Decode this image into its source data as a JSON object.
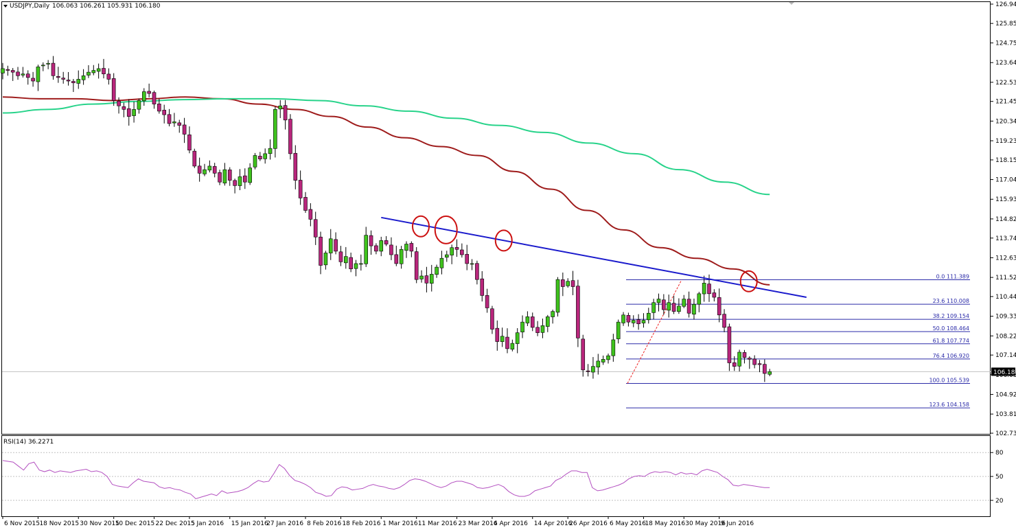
{
  "header": {
    "symbol": "USDJPY,Daily",
    "ohlc": "106.063 106.261 105.931 106.180"
  },
  "rsi_panel": {
    "label": "RSI(14) 36.2271"
  },
  "current_price_label": "106.180",
  "colors": {
    "bull": "#3fc21d",
    "bear": "#b8267c",
    "ma_fast": "#9e1b1b",
    "ma_slow": "#27d38a",
    "trendline": "#1a1acc",
    "fib": "#2a2aa8",
    "circle": "#cc1111",
    "rsi": "#b34fc0"
  },
  "chart_data": [
    {
      "type": "candlestick",
      "title": "",
      "price_axis": {
        "range": [
          102.73,
          126.94
        ],
        "ticks": [
          "126.940",
          "125.850",
          "124.750",
          "123.640",
          "122.530",
          "121.450",
          "120.340",
          "119.230",
          "118.150",
          "117.040",
          "115.930",
          "114.820",
          "113.740",
          "112.630",
          "111.520",
          "110.440",
          "109.330",
          "108.220",
          "107.140",
          "106.030",
          "104.920",
          "103.810",
          "102.730"
        ]
      },
      "date_axis": {
        "ticks": [
          "6 Nov 2015",
          "18 Nov 2015",
          "30 Nov 2015",
          "10 Dec 2015",
          "22 Dec 2015",
          "5 Jan 2016",
          "15 Jan 2016",
          "27 Jan 2016",
          "8 Feb 2016",
          "18 Feb 2016",
          "1 Mar 2016",
          "11 Mar 2016",
          "23 Mar 2016",
          "4 Apr 2016",
          "14 Apr 2016",
          "26 Apr 2016",
          "6 May 2016",
          "18 May 2016",
          "30 May 2016",
          "9 Jun 2016"
        ]
      },
      "candles_close": [
        123.3,
        123.2,
        123.1,
        122.9,
        123.0,
        122.8,
        122.6,
        123.4,
        123.5,
        123.6,
        122.9,
        122.8,
        122.7,
        122.6,
        122.5,
        122.7,
        122.9,
        123.1,
        123.2,
        123.3,
        123.0,
        122.7,
        121.5,
        121.2,
        121.0,
        120.6,
        121.0,
        121.5,
        122.0,
        121.9,
        121.3,
        120.9,
        120.7,
        120.2,
        120.3,
        120.1,
        119.6,
        118.7,
        117.8,
        117.4,
        117.6,
        117.8,
        117.4,
        116.9,
        117.6,
        117.0,
        116.7,
        117.2,
        116.9,
        117.7,
        118.4,
        118.2,
        118.5,
        118.8,
        121.0,
        121.2,
        120.4,
        118.5,
        117.0,
        116.0,
        115.3,
        114.8,
        113.8,
        112.2,
        112.9,
        113.7,
        113.0,
        112.4,
        112.7,
        112.0,
        112.3,
        112.3,
        113.9,
        113.3,
        113.0,
        113.6,
        113.4,
        112.8,
        112.3,
        113.1,
        113.4,
        113.0,
        111.4,
        111.6,
        111.2,
        111.7,
        112.1,
        112.6,
        112.8,
        113.2,
        113.1,
        112.8,
        112.3,
        112.3,
        111.4,
        110.5,
        109.8,
        108.6,
        107.9,
        108.2,
        107.5,
        107.8,
        108.4,
        109.0,
        109.3,
        108.7,
        108.4,
        108.8,
        109.3,
        109.6,
        111.4,
        111.0,
        111.3,
        111.0,
        108.1,
        106.3,
        106.2,
        106.5,
        106.8,
        106.9,
        107.1,
        108.0,
        109.0,
        109.4,
        109.0,
        109.1,
        108.9,
        109.1,
        109.5,
        110.1,
        110.3,
        109.7,
        110.1,
        109.6,
        109.9,
        110.3,
        109.5,
        110.0,
        110.6,
        111.2,
        110.6,
        110.4,
        109.4,
        108.7,
        106.7,
        106.5,
        107.3,
        107.0,
        106.9,
        106.6,
        106.6,
        106.1,
        106.2
      ],
      "series": [
        {
          "name": "",
          "type": "moving-average",
          "values": [
            121.7,
            121.6,
            121.6,
            121.5,
            121.6,
            121.7,
            121.6,
            121.3,
            121.0,
            120.6,
            120.0,
            119.4,
            118.9,
            118.4,
            117.5,
            116.5,
            115.3,
            114.2,
            113.2,
            112.6,
            112.0,
            111.1
          ]
        },
        {
          "name": "",
          "type": "moving-average",
          "values": [
            120.8,
            121.0,
            121.3,
            121.45,
            121.55,
            121.6,
            121.6,
            121.5,
            121.2,
            120.9,
            120.5,
            120.1,
            119.7,
            119.1,
            118.5,
            117.6,
            116.9,
            116.2
          ]
        }
      ],
      "trendline": {
        "start": [
          "19 Feb 2016",
          114.9
        ],
        "end": [
          "16 Jun 2016",
          110.4
        ]
      },
      "fibonacci": {
        "levels": [
          {
            "label": "0.0 111.389",
            "price": 111.389
          },
          {
            "label": "23.6 110.008",
            "price": 110.008
          },
          {
            "label": "38.2 109.154",
            "price": 109.154
          },
          {
            "label": "50.0 108.464",
            "price": 108.464
          },
          {
            "label": "61.8 107.774",
            "price": 107.774
          },
          {
            "label": "76.4 106.920",
            "price": 106.92
          },
          {
            "label": "100.0 105.539",
            "price": 105.539
          },
          {
            "label": "123.6 104.158",
            "price": 104.158
          }
        ]
      },
      "circled_highs": [
        {
          "date": "1 Mar 2016",
          "price": 114.4
        },
        {
          "date": "8 Mar 2016",
          "price": 114.2
        },
        {
          "date": "24 Mar 2016",
          "price": 113.6
        },
        {
          "date": "31 May 2016",
          "price": 111.3
        }
      ]
    },
    {
      "type": "line",
      "title": "RSI(14) 36.2271",
      "ylim": [
        0,
        100
      ],
      "y_ticks": [
        "80",
        "50",
        "20"
      ],
      "series": [
        {
          "name": "RSI(14)",
          "values": [
            70,
            69,
            68,
            63,
            58,
            66,
            68,
            58,
            56,
            58,
            55,
            57,
            56,
            55,
            57,
            58,
            59,
            56,
            57,
            55,
            50,
            40,
            38,
            37,
            36,
            42,
            47,
            44,
            43,
            42,
            37,
            35,
            36,
            34,
            33,
            30,
            28,
            22,
            24,
            26,
            28,
            26,
            32,
            29,
            30,
            31,
            33,
            36,
            41,
            45,
            43,
            44,
            54,
            65,
            60,
            51,
            45,
            43,
            40,
            36,
            30,
            28,
            25,
            26,
            34,
            37,
            36,
            33,
            34,
            35,
            38,
            40,
            38,
            37,
            35,
            34,
            36,
            40,
            45,
            47,
            46,
            44,
            41,
            38,
            36,
            38,
            42,
            44,
            44,
            42,
            40,
            36,
            35,
            36,
            38,
            40,
            37,
            31,
            27,
            25,
            25,
            27,
            32,
            34,
            36,
            38,
            45,
            48,
            53,
            57,
            57,
            55,
            55,
            36,
            32,
            33,
            35,
            37,
            39,
            42,
            47,
            50,
            51,
            50,
            54,
            56,
            55,
            56,
            55,
            52,
            55,
            53,
            54,
            52,
            57,
            59,
            57,
            55,
            50,
            46,
            39,
            38,
            40,
            39,
            38,
            37,
            36,
            36
          ]
        }
      ]
    }
  ]
}
